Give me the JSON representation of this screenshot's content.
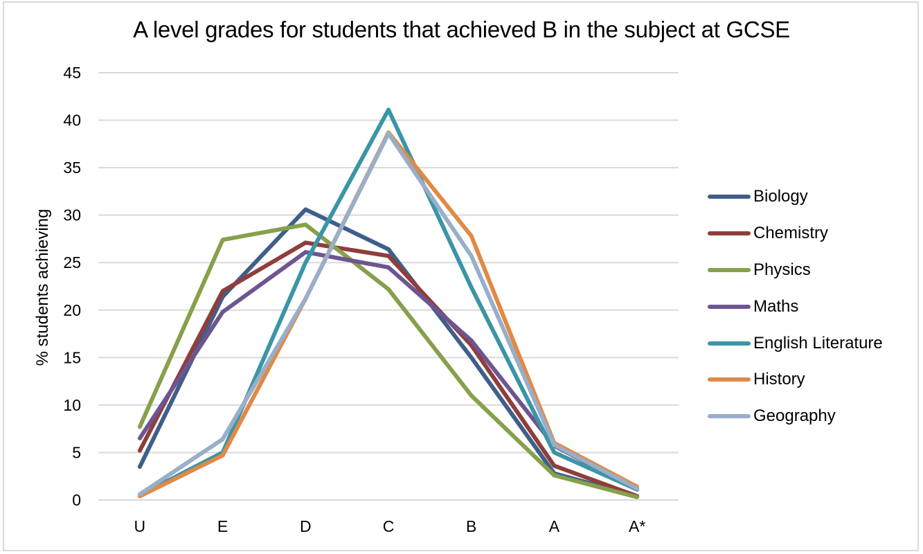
{
  "chart_data": {
    "type": "line",
    "title": "A level grades for students that achieved B in the subject at GCSE",
    "xlabel": "",
    "ylabel": "% students achieving",
    "ylim": [
      0,
      45
    ],
    "yticks": [
      0,
      5,
      10,
      15,
      20,
      25,
      30,
      35,
      40,
      45
    ],
    "grid": true,
    "legend_position": "right",
    "categories": [
      "U",
      "E",
      "D",
      "C",
      "B",
      "A",
      "A*"
    ],
    "series": [
      {
        "name": "Biology",
        "color": "#3f5f8a",
        "values": [
          3.5,
          21.4,
          30.6,
          26.4,
          15.0,
          2.8,
          0.4
        ]
      },
      {
        "name": "Chemistry",
        "color": "#8e3e3b",
        "values": [
          5.2,
          22.0,
          27.1,
          25.7,
          16.3,
          3.6,
          0.4
        ]
      },
      {
        "name": "Physics",
        "color": "#87a04b",
        "values": [
          7.7,
          27.4,
          29.0,
          22.2,
          11.0,
          2.6,
          0.3
        ]
      },
      {
        "name": "Maths",
        "color": "#6e5591",
        "values": [
          6.5,
          19.8,
          26.1,
          24.5,
          16.8,
          5.7,
          1.2
        ]
      },
      {
        "name": "English Literature",
        "color": "#3b95a6",
        "values": [
          0.5,
          5.0,
          25.0,
          41.1,
          22.4,
          5.0,
          1.1
        ]
      },
      {
        "name": "History",
        "color": "#e08a45",
        "values": [
          0.4,
          4.7,
          21.2,
          38.7,
          27.8,
          6.0,
          1.4
        ]
      },
      {
        "name": "Geography",
        "color": "#99aec9",
        "values": [
          0.6,
          6.4,
          21.2,
          38.6,
          25.7,
          5.8,
          1.2
        ]
      }
    ]
  }
}
